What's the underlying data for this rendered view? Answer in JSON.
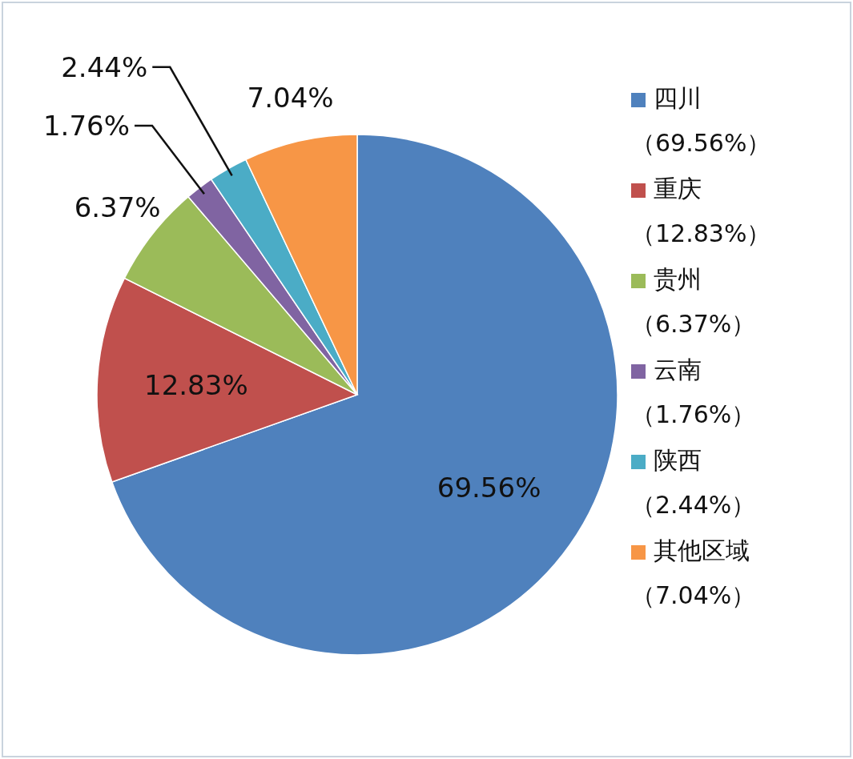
{
  "chart_data": {
    "type": "pie",
    "categories": [
      "四川（69.56%）",
      "重庆（12.83%）",
      "贵州（6.37%）",
      "云南（1.76%）",
      "陕西（2.44%）",
      "其他区域（7.04%）"
    ],
    "values": [
      69.56,
      12.83,
      6.37,
      1.76,
      2.44,
      7.04
    ],
    "colors": [
      "#4f81bd",
      "#c0504d",
      "#9bbb59",
      "#8064a2",
      "#4bacc6",
      "#f79646"
    ],
    "value_labels": [
      "69.56%",
      "12.83%",
      "6.37%",
      "1.76%",
      "2.44%",
      "7.04%"
    ],
    "legend": "right"
  }
}
